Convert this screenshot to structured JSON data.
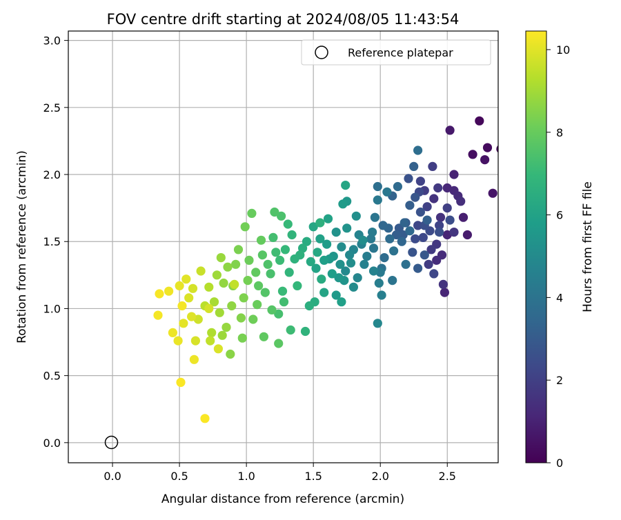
{
  "chart_data": {
    "type": "scatter",
    "title": "FOV centre drift starting at 2024/08/05 11:43:54",
    "xlabel": "Angular distance from reference (arcmin)",
    "ylabel": "Rotation from reference (arcmin)",
    "xlim": [
      -0.33,
      2.88
    ],
    "ylim": [
      -0.15,
      3.07
    ],
    "xticks": [
      "0.0",
      "0.5",
      "1.0",
      "1.5",
      "2.0",
      "2.5"
    ],
    "yticks": [
      "0.0",
      "0.5",
      "1.0",
      "1.5",
      "2.0",
      "2.5",
      "3.0"
    ],
    "grid": true,
    "legend": {
      "placement": "top-right",
      "entries": [
        "Reference platepar"
      ]
    },
    "reference_point": {
      "name": "Reference platepar",
      "x": 0.0,
      "y": 0.0
    },
    "colorbar": {
      "label": "Hours from first FF file",
      "colormap": "viridis",
      "range": [
        0,
        10.45
      ],
      "ticks": [
        "0",
        "2",
        "4",
        "6",
        "8",
        "10"
      ]
    },
    "series": [
      {
        "columns": [
          "x",
          "y",
          "hours"
        ],
        "points": [
          [
            2.9,
            2.19,
            0.1
          ],
          [
            2.74,
            2.4,
            0.2
          ],
          [
            2.8,
            2.2,
            0.3
          ],
          [
            2.69,
            2.15,
            0.4
          ],
          [
            2.78,
            2.11,
            0.5
          ],
          [
            2.84,
            1.86,
            0.6
          ],
          [
            2.52,
            2.33,
            0.7
          ],
          [
            2.65,
            1.55,
            0.8
          ],
          [
            2.62,
            1.68,
            0.9
          ],
          [
            2.55,
            2.0,
            1.0
          ],
          [
            2.5,
            1.55,
            1.05
          ],
          [
            2.48,
            1.12,
            1.1
          ],
          [
            2.5,
            1.9,
            1.15
          ],
          [
            2.55,
            1.88,
            1.2
          ],
          [
            2.58,
            1.84,
            1.25
          ],
          [
            2.46,
            1.4,
            1.3
          ],
          [
            2.42,
            1.36,
            1.35
          ],
          [
            2.6,
            1.8,
            1.4
          ],
          [
            2.45,
            1.68,
            1.5
          ],
          [
            2.4,
            1.82,
            1.55
          ],
          [
            2.47,
            1.18,
            1.6
          ],
          [
            2.55,
            1.57,
            1.65
          ],
          [
            2.42,
            1.48,
            1.7
          ],
          [
            2.43,
            1.9,
            1.75
          ],
          [
            2.38,
            1.44,
            1.8
          ],
          [
            2.36,
            1.33,
            1.85
          ],
          [
            2.33,
            1.88,
            1.9
          ],
          [
            2.39,
            2.06,
            1.95
          ],
          [
            2.5,
            1.75,
            2.0
          ],
          [
            2.35,
            1.76,
            2.05
          ],
          [
            2.3,
            1.95,
            2.1
          ],
          [
            2.44,
            1.62,
            2.15
          ],
          [
            2.28,
            1.62,
            2.2
          ],
          [
            2.4,
            1.26,
            2.25
          ],
          [
            2.32,
            1.53,
            2.3
          ],
          [
            2.29,
            1.87,
            2.35
          ],
          [
            2.37,
            1.58,
            2.4
          ],
          [
            2.26,
            1.52,
            2.45
          ],
          [
            2.52,
            1.66,
            2.5
          ],
          [
            2.44,
            1.57,
            2.55
          ],
          [
            2.33,
            1.62,
            2.6
          ],
          [
            2.21,
            1.97,
            2.65
          ],
          [
            2.3,
            1.72,
            2.7
          ],
          [
            2.24,
            1.42,
            2.75
          ],
          [
            2.26,
            1.83,
            2.8
          ],
          [
            2.19,
            1.64,
            2.85
          ],
          [
            2.33,
            1.4,
            2.9
          ],
          [
            2.14,
            1.6,
            2.95
          ],
          [
            2.28,
            1.3,
            3.0
          ],
          [
            2.17,
            1.55,
            3.05
          ],
          [
            2.22,
            1.77,
            3.1
          ],
          [
            2.12,
            1.55,
            3.15
          ],
          [
            2.35,
            1.66,
            3.2
          ],
          [
            2.25,
            2.06,
            3.25
          ],
          [
            2.09,
            1.84,
            3.3
          ],
          [
            2.18,
            1.64,
            3.35
          ],
          [
            2.06,
            1.6,
            3.4
          ],
          [
            2.16,
            1.5,
            3.45
          ],
          [
            2.02,
            1.62,
            3.5
          ],
          [
            2.22,
            1.58,
            3.55
          ],
          [
            2.13,
            1.91,
            3.6
          ],
          [
            2.07,
            1.52,
            3.65
          ],
          [
            2.03,
            1.38,
            3.7
          ],
          [
            2.28,
            2.18,
            3.75
          ],
          [
            1.98,
            1.91,
            3.8
          ],
          [
            2.19,
            1.33,
            3.85
          ],
          [
            2.01,
            1.3,
            3.9
          ],
          [
            2.1,
            1.43,
            3.95
          ],
          [
            2.09,
            1.21,
            4.0
          ],
          [
            1.96,
            1.68,
            4.05
          ],
          [
            1.95,
            1.45,
            4.1
          ],
          [
            2.05,
            1.87,
            4.15
          ],
          [
            1.98,
            1.81,
            4.2
          ],
          [
            1.93,
            1.52,
            4.25
          ],
          [
            2.0,
            1.27,
            4.3
          ],
          [
            1.94,
            1.57,
            4.35
          ],
          [
            1.9,
            1.39,
            4.4
          ],
          [
            1.99,
            1.19,
            4.45
          ],
          [
            2.01,
            1.1,
            4.5
          ],
          [
            1.86,
            1.48,
            4.55
          ],
          [
            1.88,
            1.33,
            4.6
          ],
          [
            1.95,
            1.28,
            4.65
          ],
          [
            1.84,
            1.55,
            4.7
          ],
          [
            1.8,
            1.44,
            4.75
          ],
          [
            1.83,
            1.23,
            4.8
          ],
          [
            1.98,
            0.89,
            4.85
          ],
          [
            1.77,
            1.4,
            4.9
          ],
          [
            1.74,
            1.28,
            4.95
          ],
          [
            1.8,
            1.16,
            5.0
          ],
          [
            1.71,
            1.46,
            5.05
          ],
          [
            1.87,
            1.51,
            5.1
          ],
          [
            1.78,
            1.34,
            5.15
          ],
          [
            1.82,
            1.69,
            5.2
          ],
          [
            1.7,
            1.33,
            5.25
          ],
          [
            1.67,
            1.57,
            5.3
          ],
          [
            1.75,
            1.6,
            5.35
          ],
          [
            1.73,
            1.21,
            5.4
          ],
          [
            1.65,
            1.39,
            5.45
          ],
          [
            1.69,
            1.23,
            5.5
          ],
          [
            1.75,
            1.8,
            5.55
          ],
          [
            1.62,
            1.37,
            5.6
          ],
          [
            1.67,
            1.1,
            5.65
          ],
          [
            1.72,
            1.78,
            5.7
          ],
          [
            1.6,
            1.48,
            5.75
          ],
          [
            1.64,
            1.26,
            5.8
          ],
          [
            1.58,
            1.36,
            5.85
          ],
          [
            1.71,
            1.05,
            5.9
          ],
          [
            1.55,
            1.52,
            5.95
          ],
          [
            1.61,
            1.67,
            6.0
          ],
          [
            1.52,
            1.3,
            6.05
          ],
          [
            1.58,
            1.12,
            6.1
          ],
          [
            1.74,
            1.92,
            6.15
          ],
          [
            1.5,
            1.61,
            6.2
          ],
          [
            1.53,
            1.42,
            6.25
          ],
          [
            1.48,
            1.35,
            6.3
          ],
          [
            1.56,
            1.22,
            6.35
          ],
          [
            1.45,
            1.5,
            6.4
          ],
          [
            1.51,
            1.05,
            6.45
          ],
          [
            1.42,
            1.45,
            6.5
          ],
          [
            1.47,
            1.02,
            6.55
          ],
          [
            1.55,
            1.64,
            6.6
          ],
          [
            1.4,
            1.4,
            6.65
          ],
          [
            1.36,
            1.37,
            6.7
          ],
          [
            1.44,
            0.83,
            6.75
          ],
          [
            1.34,
            1.55,
            6.8
          ],
          [
            1.32,
            1.27,
            6.85
          ],
          [
            1.38,
            1.17,
            6.9
          ],
          [
            1.29,
            1.44,
            6.95
          ],
          [
            1.31,
            1.63,
            7.0
          ],
          [
            1.27,
            1.13,
            7.05
          ],
          [
            1.25,
            1.36,
            7.1
          ],
          [
            1.33,
            0.84,
            7.15
          ],
          [
            1.22,
            1.42,
            7.2
          ],
          [
            1.28,
            1.05,
            7.25
          ],
          [
            1.2,
            1.53,
            7.3
          ],
          [
            1.24,
            0.96,
            7.35
          ],
          [
            1.18,
            1.26,
            7.4
          ],
          [
            1.26,
            1.69,
            7.45
          ],
          [
            1.16,
            1.33,
            7.5
          ],
          [
            1.21,
            1.72,
            7.55
          ],
          [
            1.14,
            1.12,
            7.6
          ],
          [
            1.19,
            0.99,
            7.65
          ],
          [
            1.12,
            1.4,
            7.7
          ],
          [
            1.24,
            0.74,
            7.75
          ],
          [
            1.09,
            1.17,
            7.8
          ],
          [
            1.13,
            0.79,
            7.85
          ],
          [
            1.07,
            1.27,
            7.9
          ],
          [
            1.11,
            1.51,
            7.95
          ],
          [
            1.04,
            1.71,
            8.0
          ],
          [
            1.08,
            1.03,
            8.05
          ],
          [
            1.02,
            1.36,
            8.1
          ],
          [
            1.05,
            0.92,
            8.15
          ],
          [
            0.99,
            1.61,
            8.2
          ],
          [
            1.01,
            1.21,
            8.25
          ],
          [
            0.97,
            0.78,
            8.3
          ],
          [
            0.94,
            1.44,
            8.35
          ],
          [
            0.98,
            1.08,
            8.4
          ],
          [
            0.92,
            1.33,
            8.45
          ],
          [
            0.96,
            0.93,
            8.5
          ],
          [
            0.9,
            1.17,
            8.55
          ],
          [
            0.88,
            0.66,
            8.6
          ],
          [
            0.86,
            1.31,
            8.65
          ],
          [
            0.89,
            1.02,
            8.7
          ],
          [
            0.83,
            1.19,
            8.75
          ],
          [
            0.85,
            0.86,
            8.8
          ],
          [
            0.81,
            1.38,
            8.85
          ],
          [
            0.82,
            0.8,
            8.9
          ],
          [
            0.78,
            1.25,
            8.95
          ],
          [
            0.8,
            0.97,
            9.0
          ],
          [
            0.76,
            1.05,
            9.1
          ],
          [
            0.74,
            0.82,
            9.2
          ],
          [
            0.72,
            1.16,
            9.3
          ],
          [
            0.69,
            1.02,
            9.4
          ],
          [
            0.73,
            0.76,
            9.5
          ],
          [
            0.66,
            1.28,
            9.6
          ],
          [
            0.64,
            0.92,
            9.7
          ],
          [
            0.6,
            1.15,
            9.8
          ],
          [
            0.62,
            0.76,
            9.85
          ],
          [
            0.57,
            1.08,
            9.9
          ],
          [
            0.59,
            0.94,
            9.95
          ],
          [
            0.55,
            1.22,
            10.0
          ],
          [
            0.53,
            0.89,
            10.05
          ],
          [
            0.5,
            1.17,
            10.1
          ],
          [
            0.49,
            0.76,
            10.15
          ],
          [
            0.45,
            0.82,
            10.2
          ],
          [
            0.42,
            1.13,
            10.25
          ],
          [
            0.34,
            0.95,
            10.3
          ],
          [
            0.35,
            1.11,
            10.35
          ],
          [
            0.51,
            0.45,
            10.4
          ],
          [
            0.69,
            0.18,
            10.4
          ],
          [
            0.61,
            0.62,
            10.2
          ],
          [
            0.79,
            0.7,
            9.9
          ],
          [
            0.91,
            1.18,
            9.5
          ],
          [
            0.52,
            1.02,
            10.3
          ],
          [
            0.72,
            1.0,
            9.8
          ]
        ]
      }
    ]
  }
}
